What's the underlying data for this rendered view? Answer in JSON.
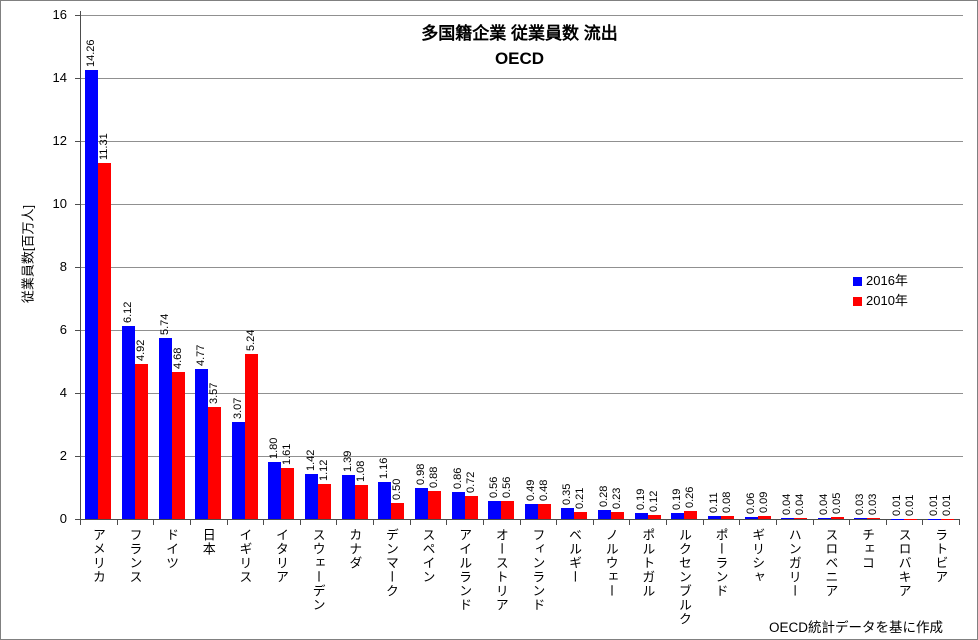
{
  "title": {
    "line1": "多国籍企業 従業員数 流出",
    "line2": "OECD"
  },
  "footer_note": "OECD統計データを基に作成",
  "chart_data": {
    "type": "bar",
    "title": "多国籍企業 従業員数 流出 OECD",
    "xlabel": "",
    "ylabel": "従業員数[百万人]",
    "ylim": [
      0,
      16
    ],
    "ytick_step": 2,
    "yticks": [
      0,
      2,
      4,
      6,
      8,
      10,
      12,
      14,
      16
    ],
    "grid": true,
    "legend_position": "right",
    "value_labels": true,
    "value_label_format": "0.00",
    "categories": [
      "アメリカ",
      "フランス",
      "ドイツ",
      "日本",
      "イギリス",
      "イタリア",
      "スウェーデン",
      "カナダ",
      "デンマーク",
      "スペイン",
      "アイルランド",
      "オーストリア",
      "フィンランド",
      "ベルギー",
      "ノルウェー",
      "ポルトガル",
      "ルクセンブルク",
      "ポーランド",
      "ギリシャ",
      "ハンガリー",
      "スロベニア",
      "チェコ",
      "スロバキア",
      "ラトビア"
    ],
    "series": [
      {
        "name": "2016年",
        "color": "#0000ff",
        "values": [
          14.26,
          6.12,
          5.74,
          4.77,
          3.07,
          1.8,
          1.42,
          1.39,
          1.16,
          0.98,
          0.86,
          0.56,
          0.49,
          0.35,
          0.28,
          0.19,
          0.19,
          0.11,
          0.06,
          0.04,
          0.04,
          0.03,
          0.01,
          0.01
        ]
      },
      {
        "name": "2010年",
        "color": "#ff0000",
        "values": [
          11.31,
          4.92,
          4.68,
          3.57,
          5.24,
          1.61,
          1.12,
          1.08,
          0.5,
          0.88,
          0.72,
          0.56,
          0.48,
          0.21,
          0.23,
          0.12,
          0.26,
          0.08,
          0.09,
          0.04,
          0.05,
          0.03,
          0.01,
          0.01
        ]
      }
    ]
  }
}
